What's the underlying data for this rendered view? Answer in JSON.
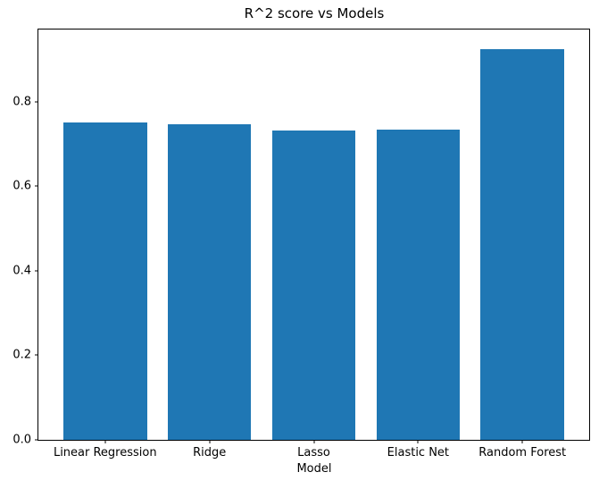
{
  "figure": {
    "background": "#ffffff",
    "axis_color": "#000000"
  },
  "chart_data": {
    "type": "bar",
    "title": "R^2 score vs Models",
    "xlabel": "Model",
    "ylabel": "",
    "categories": [
      "Linear Regression",
      "Ridge",
      "Lasso",
      "Elastic Net",
      "Random Forest"
    ],
    "values": [
      0.75,
      0.747,
      0.733,
      0.734,
      0.925
    ],
    "bar_color": "#1f77b4",
    "yticks": [
      0.0,
      0.2,
      0.4,
      0.6,
      0.8
    ],
    "ytick_labels": [
      "0.0",
      "0.2",
      "0.4",
      "0.6",
      "0.8"
    ],
    "ylim": [
      0,
      0.971
    ],
    "grid": false,
    "legend": null,
    "bar_width_fraction": 0.8,
    "x_edge_padding": 0.24
  }
}
